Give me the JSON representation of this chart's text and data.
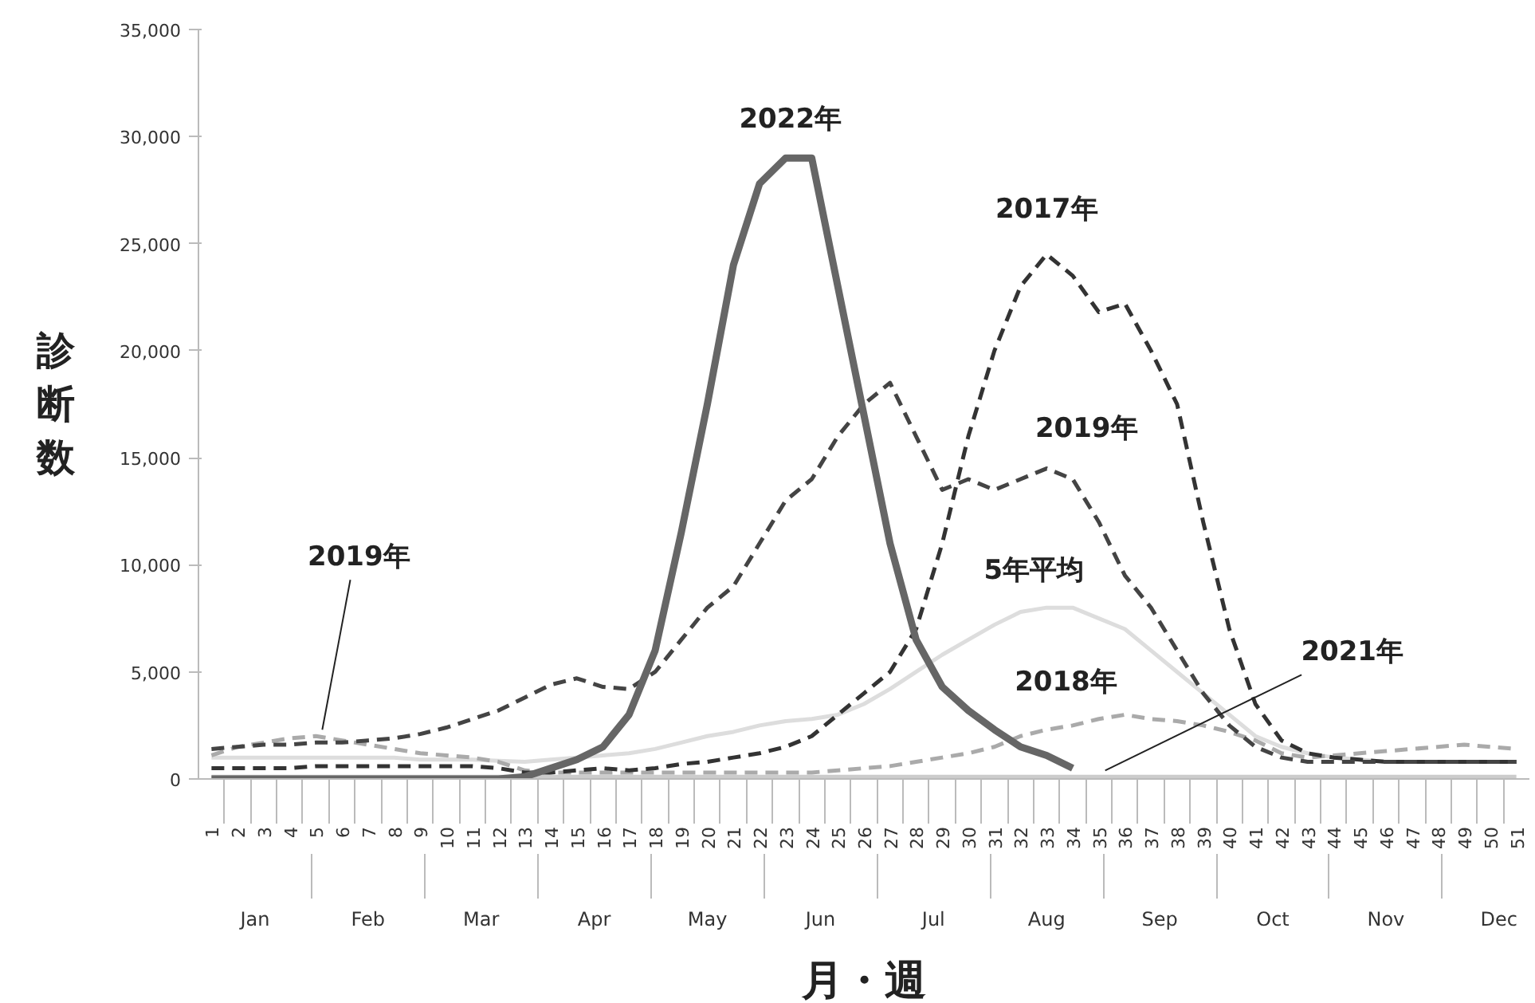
{
  "chart_data": {
    "type": "line",
    "xlabel": "月・週",
    "ylabel": "診断数",
    "x": [
      1,
      2,
      3,
      4,
      5,
      6,
      7,
      8,
      9,
      10,
      11,
      12,
      13,
      14,
      15,
      16,
      17,
      18,
      19,
      20,
      21,
      22,
      23,
      24,
      25,
      26,
      27,
      28,
      29,
      30,
      31,
      32,
      33,
      34,
      35,
      36,
      37,
      38,
      39,
      40,
      41,
      42,
      43,
      44,
      45,
      46,
      47,
      48,
      49,
      50,
      51
    ],
    "xlim": [
      0.5,
      51.5
    ],
    "xticks": [
      1,
      2,
      3,
      4,
      5,
      6,
      7,
      8,
      9,
      10,
      11,
      12,
      13,
      14,
      15,
      16,
      17,
      18,
      19,
      20,
      21,
      22,
      23,
      24,
      25,
      26,
      27,
      28,
      29,
      30,
      31,
      32,
      33,
      34,
      35,
      36,
      37,
      38,
      39,
      40,
      41,
      42,
      43,
      44,
      45,
      46,
      47,
      48,
      49,
      50,
      51
    ],
    "ylim": [
      0,
      35000
    ],
    "yticks": [
      0,
      {
        "value": 5000,
        "label": "5,000"
      },
      {
        "value": 10000,
        "label": "10,000"
      },
      {
        "value": 15000,
        "label": "15,000"
      },
      {
        "value": 20000,
        "label": "20,000"
      },
      {
        "value": 25000,
        "label": "25,000"
      },
      {
        "value": 30000,
        "label": "30,000"
      },
      {
        "value": 35000,
        "label": "35,000"
      }
    ],
    "grid": false,
    "marker": "none",
    "series": [
      {
        "color": "#dddddd",
        "line_style": "solid",
        "values": [
          1000,
          1000,
          1000,
          1000,
          1000,
          1000,
          1000,
          1000,
          900,
          900,
          900,
          850,
          800,
          900,
          1000,
          1100,
          1200,
          1400,
          1700,
          2000,
          2200,
          2500,
          2700,
          2800,
          3000,
          3500,
          4200,
          5000,
          5800,
          6500,
          7200,
          7800,
          8000,
          8000,
          7500,
          7000,
          6000,
          5000,
          4000,
          3000,
          2000,
          1500,
          1200,
          1000,
          900,
          800,
          800,
          800,
          800,
          800,
          800
        ]
      },
      {
        "color": "#cccccc",
        "line_style": "solid",
        "values": [
          100,
          100,
          100,
          100,
          100,
          100,
          100,
          100,
          100,
          100,
          100,
          100,
          100,
          100,
          100,
          100,
          100,
          100,
          100,
          100,
          100,
          100,
          100,
          100,
          100,
          100,
          100,
          100,
          100,
          100,
          100,
          100,
          100,
          100,
          100,
          100,
          100,
          100,
          100,
          100,
          100,
          100,
          100,
          100,
          100,
          100,
          100,
          100,
          100,
          100,
          100
        ]
      },
      {
        "color": "#aaaaaa",
        "line_style": "dashed",
        "values": [
          1100,
          1500,
          1700,
          1900,
          2000,
          1800,
          1600,
          1400,
          1200,
          1100,
          1000,
          800,
          400,
          300,
          300,
          300,
          300,
          300,
          300,
          300,
          300,
          300,
          300,
          300,
          400,
          500,
          600,
          800,
          1000,
          1200,
          1500,
          2000,
          2300,
          2500,
          2800,
          3000,
          2800,
          2700,
          2500,
          2200,
          1800,
          1200,
          1000,
          1100,
          1200,
          1300,
          1400,
          1500,
          1600,
          1500,
          1400
        ]
      },
      {
        "color": "#333333",
        "line_style": "dashed",
        "values": [
          500,
          500,
          500,
          500,
          600,
          600,
          600,
          600,
          600,
          600,
          600,
          500,
          300,
          300,
          400,
          500,
          400,
          500,
          700,
          800,
          1000,
          1200,
          1500,
          2000,
          3000,
          4000,
          5000,
          7000,
          11000,
          16000,
          20000,
          23000,
          24500,
          23500,
          21800,
          22200,
          20000,
          17500,
          12000,
          7000,
          3500,
          1800,
          1200,
          1000,
          900,
          800,
          800,
          800,
          800,
          800,
          800
        ]
      },
      {
        "color": "#444444",
        "line_style": "dashed",
        "values": [
          1400,
          1500,
          1600,
          1600,
          1700,
          1700,
          1800,
          1900,
          2100,
          2400,
          2800,
          3200,
          3800,
          4400,
          4700,
          4300,
          4200,
          5000,
          6500,
          8000,
          9000,
          11000,
          13000,
          14000,
          16000,
          17500,
          18500,
          16000,
          13500,
          14000,
          13500,
          14000,
          14500,
          14000,
          12000,
          9500,
          8000,
          6000,
          4000,
          2500,
          1500,
          1000,
          800,
          800,
          800,
          800,
          800,
          800,
          800,
          800,
          800
        ]
      },
      {
        "color": "#666666",
        "line_style": "solid",
        "values": [
          0,
          0,
          0,
          0,
          0,
          0,
          0,
          0,
          0,
          0,
          0,
          0,
          100,
          500,
          900,
          1500,
          3000,
          6000,
          11500,
          17500,
          24000,
          27800,
          29000,
          29000,
          23000,
          17000,
          11000,
          6500,
          4300,
          3200,
          2300,
          1500,
          1100,
          500,
          null,
          null,
          null,
          null,
          null,
          null,
          null,
          null,
          null,
          null,
          null,
          null,
          null,
          null,
          null,
          null,
          null
        ]
      }
    ],
    "annotations": [
      {
        "text": "2019年",
        "x": 5,
        "y": 2000
      },
      {
        "text": "2022年",
        "x": 23,
        "y": 29000
      },
      {
        "text": "2017年",
        "x": 33,
        "y": 24500
      },
      {
        "text": "2019年",
        "x": 33,
        "y": 14500
      },
      {
        "text": "5年平均",
        "x": 33,
        "y": 8000
      },
      {
        "text": "2018年",
        "x": 36,
        "y": 3000
      },
      {
        "text": "2021年",
        "x": 35,
        "y": 100
      },
      "Jan",
      "Feb",
      "Mar",
      "Apr",
      "May",
      "Jun",
      "Jul",
      "Aug",
      "Sep",
      "Oct",
      "Nov",
      "Dec"
    ]
  }
}
